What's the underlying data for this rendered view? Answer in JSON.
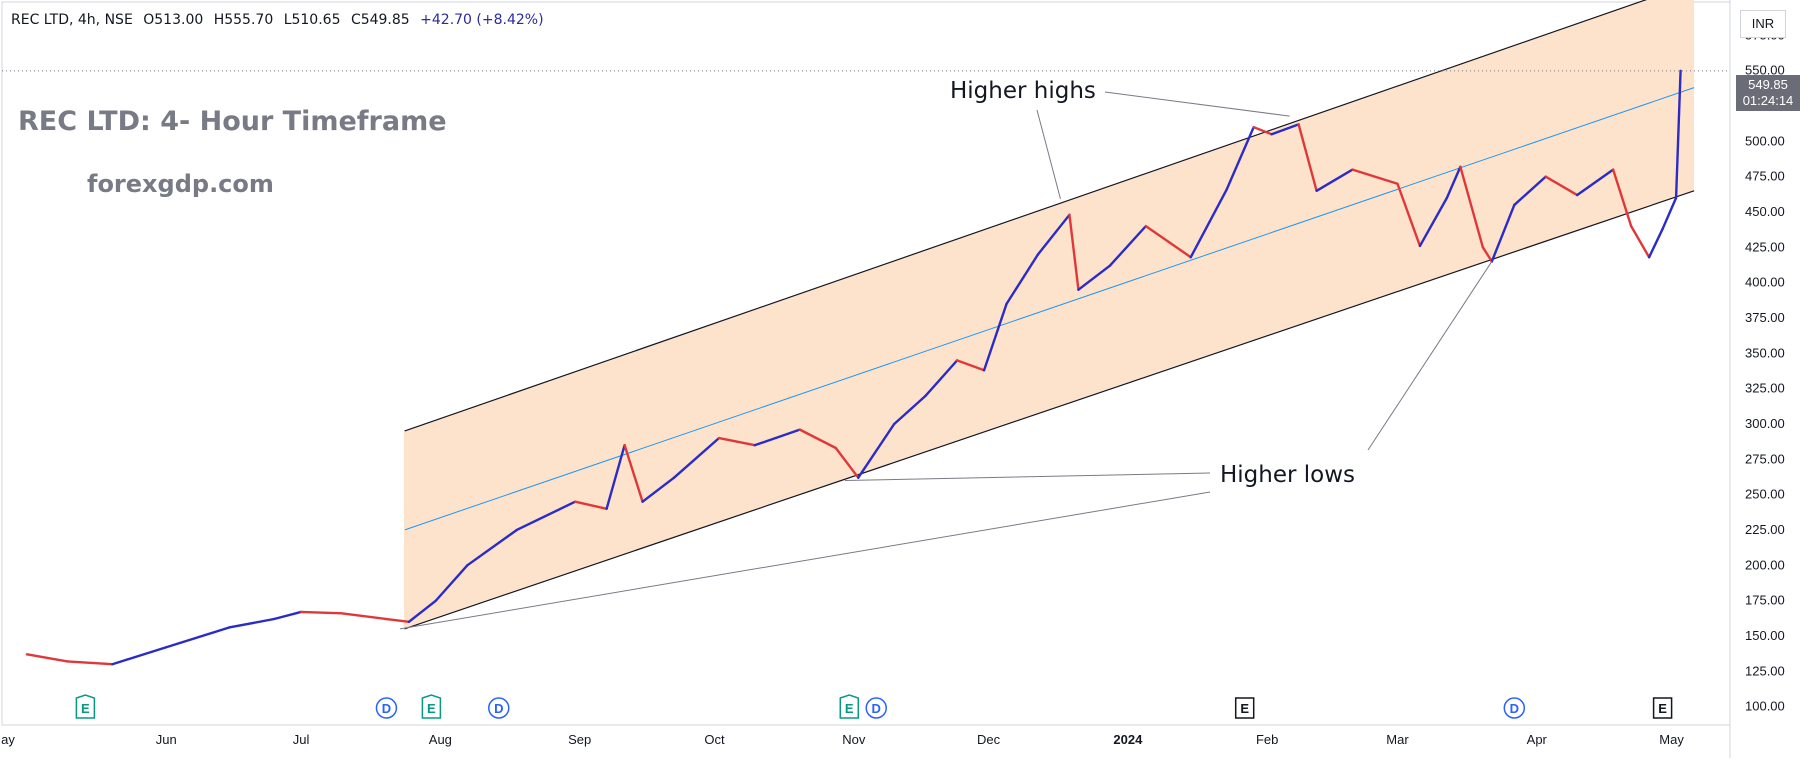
{
  "header": {
    "symbol": "REC LTD, 4h, NSE",
    "open": "O513.00",
    "high": "H555.70",
    "low": "L510.65",
    "close": "C549.85",
    "change": "+42.70 (+8.42%)"
  },
  "overlay": {
    "title": "REC LTD: 4- Hour Timeframe",
    "site": "forexgdp.com",
    "higher_highs": "Higher highs",
    "higher_lows": "Higher lows"
  },
  "price_scale": {
    "currency": "INR",
    "last_price": "549.85",
    "countdown": "01:24:14"
  },
  "colors": {
    "up": "#2b2bc8",
    "down": "#e0383a",
    "channel_fill": "#fde3cc",
    "channel_line": "#131722",
    "mid_line": "#2196f3",
    "marker_e": "#089981",
    "marker_d": "#2962ff",
    "marker_e_gray": "#131722"
  },
  "chart_data": {
    "type": "line",
    "title": "REC LTD, 4h, NSE",
    "xlabel": "",
    "ylabel": "",
    "ylim": [
      87,
      600
    ],
    "y_ticks": [
      "100.00",
      "125.00",
      "150.00",
      "175.00",
      "200.00",
      "225.00",
      "250.00",
      "275.00",
      "300.00",
      "325.00",
      "350.00",
      "375.00",
      "400.00",
      "425.00",
      "450.00",
      "475.00",
      "500.00",
      "525.00",
      "550.00",
      "575.00"
    ],
    "x_tick_labels": [
      "ay",
      "Jun",
      "Jul",
      "Aug",
      "Sep",
      "Oct",
      "Nov",
      "Dec",
      "2024",
      "Feb",
      "Mar",
      "Apr",
      "May"
    ],
    "series": [
      {
        "x": [
          "2023-05-01",
          "2023-05-10",
          "2023-05-20",
          "2023-06-01",
          "2023-06-15",
          "2023-06-25",
          "2023-07-01",
          "2023-07-10",
          "2023-07-20",
          "2023-07-25",
          "2023-07-31",
          "2023-08-07",
          "2023-08-18",
          "2023-08-31",
          "2023-09-07",
          "2023-09-11",
          "2023-09-15",
          "2023-09-22",
          "2023-10-02",
          "2023-10-10",
          "2023-10-20",
          "2023-10-28",
          "2023-11-02",
          "2023-11-10",
          "2023-11-17",
          "2023-11-24",
          "2023-11-30",
          "2023-12-05",
          "2023-12-12",
          "2023-12-19",
          "2023-12-21",
          "2023-12-28",
          "2024-01-05",
          "2024-01-15",
          "2024-01-23",
          "2024-01-29",
          "2024-02-02",
          "2024-02-08",
          "2024-02-12",
          "2024-02-20",
          "2024-03-01",
          "2024-03-06",
          "2024-03-12",
          "2024-03-15",
          "2024-03-20",
          "2024-03-22",
          "2024-03-27",
          "2024-04-03",
          "2024-04-10",
          "2024-04-18",
          "2024-04-22",
          "2024-04-26",
          "2024-04-29",
          "2024-05-02",
          "2024-05-03"
        ],
        "values": [
          137,
          132,
          130,
          142,
          156,
          162,
          167,
          166,
          162,
          160,
          175,
          200,
          225,
          245,
          240,
          285,
          245,
          262,
          290,
          285,
          296,
          283,
          262,
          300,
          320,
          345,
          338,
          385,
          420,
          448,
          395,
          412,
          440,
          418,
          466,
          510,
          505,
          512,
          465,
          480,
          470,
          426,
          460,
          482,
          425,
          415,
          455,
          475,
          462,
          480,
          440,
          418,
          438,
          460,
          549.85
        ]
      }
    ],
    "channel": {
      "start_x": "2023-07-24",
      "end_x": "2024-05-06",
      "upper": [
        295,
        612
      ],
      "lower": [
        155,
        465
      ],
      "mid": [
        225,
        538
      ]
    },
    "annotations": [
      {
        "text": "Higher highs",
        "points": [
          [
            "2023-12-17",
            455
          ],
          [
            "2024-02-06",
            515
          ]
        ]
      },
      {
        "text": "Higher lows",
        "points": [
          [
            "2023-07-23",
            155
          ],
          [
            "2023-10-30",
            260
          ],
          [
            "2024-03-22",
            415
          ]
        ]
      }
    ],
    "event_markers": [
      {
        "label": "E",
        "x": "2023-05-14",
        "kind": "E"
      },
      {
        "label": "D",
        "x": "2023-07-20",
        "kind": "D"
      },
      {
        "label": "E",
        "x": "2023-07-30",
        "kind": "E"
      },
      {
        "label": "D",
        "x": "2023-08-14",
        "kind": "D"
      },
      {
        "label": "E",
        "x": "2023-10-31",
        "kind": "E"
      },
      {
        "label": "D",
        "x": "2023-11-06",
        "kind": "D"
      },
      {
        "label": "E",
        "x": "2024-01-27",
        "kind": "E-gray"
      },
      {
        "label": "D",
        "x": "2024-03-27",
        "kind": "D"
      },
      {
        "label": "E",
        "x": "2024-04-29",
        "kind": "E-gray"
      }
    ],
    "grid": false,
    "legend": "none"
  }
}
